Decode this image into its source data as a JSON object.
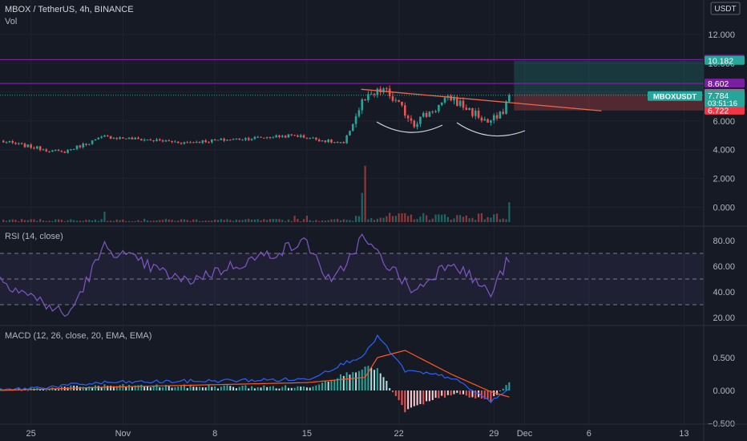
{
  "header": {
    "title": "MBOX / TetherUS, 4h, BINANCE",
    "vol_label": "Vol"
  },
  "currency_button": "USDT",
  "price_axis": {
    "ticks": [
      {
        "v": 12,
        "t": "12.000"
      },
      {
        "v": 10,
        "t": "10.000"
      },
      {
        "v": 8,
        "t": "8.000"
      },
      {
        "v": 6,
        "t": "6.000"
      },
      {
        "v": 4,
        "t": "4.000"
      },
      {
        "v": 2,
        "t": "2.000"
      },
      {
        "v": 0,
        "t": "0.000"
      }
    ],
    "badges": [
      {
        "v": 10.257,
        "t": "10.257",
        "color": "#7b1fa2"
      },
      {
        "v": 10.182,
        "t": "10.182",
        "color": "#26a69a"
      },
      {
        "v": 8.602,
        "t": "8.602",
        "color": "#7b1fa2"
      },
      {
        "v": 7.888,
        "t": "7.888",
        "color": "#787b86"
      },
      {
        "v": 6.722,
        "t": "6.722",
        "color": "#f23645"
      }
    ],
    "last_price": {
      "v": 7.784,
      "t": "7.784",
      "countdown": "03:51:16",
      "color": "#26a69a"
    },
    "symbol_tag": "MBOXUSDT"
  },
  "rsi": {
    "label": "RSI (14, close)",
    "ticks": [
      {
        "v": 80,
        "t": "80.00"
      },
      {
        "v": 60,
        "t": "60.00"
      },
      {
        "v": 40,
        "t": "40.00"
      },
      {
        "v": 20,
        "t": "20.00"
      }
    ],
    "bands": [
      30,
      50,
      70
    ]
  },
  "macd": {
    "label": "MACD (12, 26, close, 20, EMA, EMA)",
    "ticks": [
      {
        "v": 0.5,
        "t": "0.500"
      },
      {
        "v": 0,
        "t": "0.000"
      },
      {
        "v": -0.5,
        "t": "−0.500"
      }
    ]
  },
  "time_axis": [
    {
      "i": 10,
      "t": "25"
    },
    {
      "i": 40,
      "t": "Nov"
    },
    {
      "i": 70,
      "t": "8"
    },
    {
      "i": 100,
      "t": "15"
    },
    {
      "i": 130,
      "t": "22"
    },
    {
      "i": 161,
      "t": "29"
    },
    {
      "i": 171,
      "t": "Dec"
    },
    {
      "i": 192,
      "t": "6"
    },
    {
      "i": 223,
      "t": "13"
    }
  ],
  "colors": {
    "up": "#26a69a",
    "down": "#ef5350",
    "purple_line": "#7b1fa2",
    "rsi_line": "#7e57c2",
    "macd_line": "#2962ff",
    "signal_line": "#ff5722"
  },
  "chart_data": {
    "type": "candlestick",
    "symbol": "MBOX / TetherUS",
    "interval": "4h",
    "x_range_candles": [
      0,
      228
    ],
    "key_points": [
      {
        "i": 0,
        "close": 4.6
      },
      {
        "i": 20,
        "close": 3.8
      },
      {
        "i": 34,
        "close": 4.9
      },
      {
        "i": 60,
        "close": 4.5
      },
      {
        "i": 96,
        "close": 5.0
      },
      {
        "i": 112,
        "close": 4.4
      },
      {
        "i": 118,
        "close": 7.3
      },
      {
        "i": 125,
        "close": 8.2
      },
      {
        "i": 135,
        "close": 5.9
      },
      {
        "i": 147,
        "close": 7.6
      },
      {
        "i": 159,
        "close": 5.9
      },
      {
        "i": 163,
        "close": 6.3
      },
      {
        "i": 166,
        "close": 7.78
      }
    ],
    "resistance_levels": [
      10.257,
      8.602
    ],
    "long_position": {
      "entry": 7.888,
      "target": 10.182,
      "stop": 6.722
    },
    "trendline": [
      {
        "i": 119,
        "price": 8.2
      },
      {
        "i": 194,
        "price": 6.7
      }
    ],
    "volume_spikes": [
      {
        "i": 119,
        "v": 2.7
      },
      {
        "i": 118,
        "v": 1.4
      },
      {
        "i": 166,
        "v": 0.95
      }
    ],
    "rsi_key_points": [
      {
        "i": 0,
        "v": 50
      },
      {
        "i": 22,
        "v": 21
      },
      {
        "i": 34,
        "v": 75
      },
      {
        "i": 60,
        "v": 48
      },
      {
        "i": 100,
        "v": 79
      },
      {
        "i": 108,
        "v": 45
      },
      {
        "i": 118,
        "v": 82
      },
      {
        "i": 135,
        "v": 40
      },
      {
        "i": 147,
        "v": 65
      },
      {
        "i": 160,
        "v": 38
      },
      {
        "i": 166,
        "v": 67
      }
    ],
    "macd_key_points": [
      {
        "i": 0,
        "macd": 0.0,
        "signal": 0.0
      },
      {
        "i": 34,
        "macd": 0.12,
        "signal": 0.05
      },
      {
        "i": 100,
        "macd": 0.17,
        "signal": 0.12
      },
      {
        "i": 119,
        "macd": 0.55,
        "signal": 0.2
      },
      {
        "i": 123,
        "macd": 0.83,
        "signal": 0.5
      },
      {
        "i": 132,
        "macd": 0.3,
        "signal": 0.61
      },
      {
        "i": 147,
        "macd": 0.2,
        "signal": 0.25
      },
      {
        "i": 160,
        "macd": -0.17,
        "signal": -0.02
      },
      {
        "i": 166,
        "macd": 0.02,
        "signal": -0.1
      }
    ]
  }
}
